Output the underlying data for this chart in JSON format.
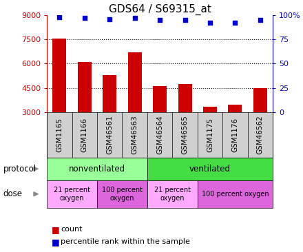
{
  "title": "GDS64 / S69315_at",
  "samples": [
    "GSM1165",
    "GSM1166",
    "GSM46561",
    "GSM46563",
    "GSM46564",
    "GSM46565",
    "GSM1175",
    "GSM1176",
    "GSM46562"
  ],
  "counts": [
    7550,
    6100,
    5300,
    6700,
    4600,
    4750,
    3350,
    3450,
    4500
  ],
  "percentiles": [
    98,
    97,
    96,
    97,
    95,
    95,
    92,
    92,
    95
  ],
  "ylim_left": [
    3000,
    9000
  ],
  "ylim_right": [
    0,
    100
  ],
  "yticks_left": [
    3000,
    4500,
    6000,
    7500,
    9000
  ],
  "yticks_right": [
    0,
    25,
    50,
    75,
    100
  ],
  "bar_color": "#cc0000",
  "scatter_color": "#0000cc",
  "bar_bottom": 3000,
  "protocol_groups": [
    {
      "label": "nonventilated",
      "start": 0,
      "end": 4,
      "color": "#99ff99"
    },
    {
      "label": "ventilated",
      "start": 4,
      "end": 9,
      "color": "#44dd44"
    }
  ],
  "dose_groups": [
    {
      "label": "21 percent\noxygen",
      "start": 0,
      "end": 2,
      "color": "#ffaaff"
    },
    {
      "label": "100 percent\noxygen",
      "start": 2,
      "end": 4,
      "color": "#dd66dd"
    },
    {
      "label": "21 percent\noxygen",
      "start": 4,
      "end": 6,
      "color": "#ffaaff"
    },
    {
      "label": "100 percent oxygen",
      "start": 6,
      "end": 9,
      "color": "#dd66dd"
    }
  ],
  "legend_count_color": "#cc0000",
  "legend_pct_color": "#0000cc",
  "title_fontsize": 11,
  "tick_fontsize": 8,
  "sample_fontsize": 7.5,
  "label_fontsize": 9,
  "gray_bg": "#d0d0d0"
}
